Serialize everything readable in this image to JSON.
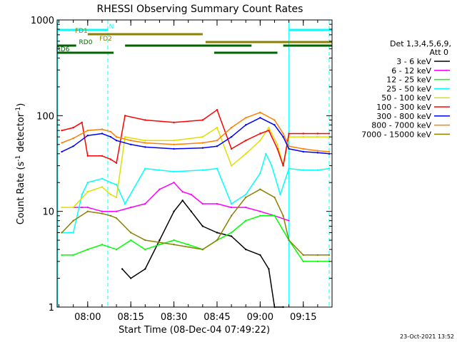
{
  "chart_data": {
    "type": "line",
    "title": "RHESSI Observing Summary Count Rates",
    "xlabel": "Start Time (08-Dec-04 07:49:22)",
    "ylabel": "Count Rate (s⁻¹ detector⁻¹)",
    "ylabel_base": "Count Rate (s",
    "ylabel_mid": " detector",
    "ylabel_end": ")",
    "ylabel_exp": "-1",
    "yscale": "log",
    "ylim": [
      1,
      1000
    ],
    "xlim": [
      "07:49:22",
      "09:25:00"
    ],
    "x_ticks": [
      "08:00",
      "08:15",
      "08:30",
      "08:45",
      "09:00",
      "09:15"
    ],
    "y_ticks": [
      "1",
      "10",
      "100",
      "1000"
    ],
    "legend_header": [
      "Det 1,3,4,5,6,9,",
      "Att 0"
    ],
    "legend_position": "right",
    "timestamp": "23-Oct-2021 13:52",
    "flags": [
      {
        "label": "N",
        "color": "#00ffff",
        "segments": [
          [
            "07:49",
            "08:07"
          ],
          [
            "09:10",
            "09:25"
          ]
        ]
      },
      {
        "label": "FD1",
        "color": "#8b8000",
        "segments": [
          [
            "08:00",
            "08:40"
          ]
        ]
      },
      {
        "label": "FD2",
        "color": "#8b8000",
        "segments": [
          [
            "08:41",
            "09:25"
          ]
        ]
      },
      {
        "label": "RD0",
        "color": "#006400",
        "segments": [
          [
            "07:49",
            "07:56"
          ],
          [
            "08:13",
            "08:57"
          ],
          [
            "09:08",
            "09:25"
          ]
        ]
      },
      {
        "label": "RD6",
        "color": "#006400",
        "segments": [
          [
            "07:49",
            "08:09"
          ],
          [
            "08:44",
            "09:06"
          ]
        ]
      }
    ],
    "night_intervals": [
      [
        "07:49",
        "08:07"
      ],
      [
        "09:10",
        "09:24"
      ]
    ],
    "series": [
      {
        "name": "3 - 6 keV",
        "color": "#000000",
        "x": [
          "08:12",
          "08:15",
          "08:20",
          "08:25",
          "08:30",
          "08:33",
          "08:36",
          "08:40",
          "08:45",
          "08:50",
          "08:55",
          "09:00",
          "09:03",
          "09:05",
          "09:08"
        ],
        "values": [
          2.5,
          2.0,
          2.5,
          5,
          10,
          13,
          10,
          7,
          6,
          5.5,
          4,
          3.5,
          2.5,
          1.0,
          1.0
        ]
      },
      {
        "name": "6 - 12 keV",
        "color": "#ff00ff",
        "x": [
          "07:55",
          "07:58",
          "08:00",
          "08:05",
          "08:10",
          "08:15",
          "08:20",
          "08:25",
          "08:30",
          "08:33",
          "08:36",
          "08:40",
          "08:45",
          "08:50",
          "08:55",
          "09:00",
          "09:05",
          "09:10"
        ],
        "values": [
          11,
          11,
          11,
          10,
          10,
          11,
          12,
          17,
          20,
          16,
          15,
          12,
          12,
          11,
          11,
          10,
          9,
          8
        ]
      },
      {
        "name": "12 - 25 keV",
        "color": "#00ff00",
        "x": [
          "07:51",
          "07:55",
          "08:00",
          "08:05",
          "08:10",
          "08:15",
          "08:20",
          "08:25",
          "08:30",
          "08:35",
          "08:40",
          "08:45",
          "08:50",
          "08:55",
          "09:00",
          "09:05",
          "09:10",
          "09:15",
          "09:20",
          "09:24"
        ],
        "values": [
          3.5,
          3.5,
          4,
          4.5,
          4,
          5,
          4,
          4.5,
          5,
          4.5,
          4,
          5,
          6,
          8,
          9,
          9,
          5,
          3,
          3,
          3
        ]
      },
      {
        "name": "25 - 50 keV",
        "color": "#00ffff",
        "x": [
          "07:51",
          "07:55",
          "07:58",
          "08:00",
          "08:05",
          "08:08",
          "08:10",
          "08:13",
          "08:20",
          "08:30",
          "08:40",
          "08:45",
          "08:50",
          "08:55",
          "09:00",
          "09:02",
          "09:04",
          "09:07",
          "09:10",
          "09:15",
          "09:20",
          "09:24"
        ],
        "values": [
          6,
          6,
          15,
          20,
          22,
          20,
          19,
          12,
          28,
          26,
          27,
          28,
          12,
          15,
          25,
          40,
          30,
          15,
          28,
          27,
          27,
          28
        ]
      },
      {
        "name": "50 - 100 keV",
        "color": "#e0e000",
        "x": [
          "07:51",
          "07:55",
          "08:00",
          "08:05",
          "08:08",
          "08:10",
          "08:13",
          "08:20",
          "08:30",
          "08:40",
          "08:45",
          "08:50",
          "08:55",
          "09:00",
          "09:03",
          "09:06",
          "09:08",
          "09:10",
          "09:15",
          "09:20",
          "09:24"
        ],
        "values": [
          11,
          11,
          16,
          18,
          15,
          14,
          60,
          55,
          55,
          60,
          75,
          30,
          40,
          55,
          75,
          50,
          30,
          60,
          60,
          60,
          60
        ]
      },
      {
        "name": "100 - 300 keV",
        "color": "#ff0000",
        "x": [
          "07:51",
          "07:55",
          "07:58",
          "08:00",
          "08:05",
          "08:08",
          "08:10",
          "08:13",
          "08:20",
          "08:30",
          "08:40",
          "08:45",
          "08:50",
          "08:55",
          "09:00",
          "09:03",
          "09:06",
          "09:08",
          "09:10",
          "09:15",
          "09:20",
          "09:24"
        ],
        "values": [
          70,
          75,
          85,
          38,
          38,
          35,
          32,
          100,
          90,
          85,
          90,
          115,
          45,
          55,
          65,
          70,
          45,
          30,
          65,
          65,
          65,
          65
        ]
      },
      {
        "name": "300 - 800 keV",
        "color": "#0000ff",
        "x": [
          "07:51",
          "07:55",
          "08:00",
          "08:05",
          "08:08",
          "08:10",
          "08:15",
          "08:20",
          "08:30",
          "08:40",
          "08:45",
          "08:50",
          "08:55",
          "09:00",
          "09:05",
          "09:08",
          "09:10",
          "09:15",
          "09:20",
          "09:24"
        ],
        "values": [
          42,
          48,
          62,
          65,
          60,
          55,
          50,
          47,
          45,
          46,
          48,
          60,
          80,
          95,
          80,
          60,
          45,
          42,
          41,
          40
        ]
      },
      {
        "name": "800 - 7000 keV",
        "color": "#ff8000",
        "x": [
          "07:51",
          "07:55",
          "08:00",
          "08:05",
          "08:08",
          "08:10",
          "08:15",
          "08:20",
          "08:30",
          "08:40",
          "08:45",
          "08:50",
          "08:55",
          "09:00",
          "09:05",
          "09:08",
          "09:10",
          "09:15",
          "09:20",
          "09:24"
        ],
        "values": [
          52,
          58,
          70,
          72,
          68,
          60,
          55,
          52,
          50,
          52,
          55,
          75,
          95,
          108,
          90,
          65,
          48,
          45,
          43,
          42
        ]
      },
      {
        "name": "7000 - 15000 keV",
        "color": "#8b8000",
        "x": [
          "07:51",
          "07:55",
          "08:00",
          "08:05",
          "08:08",
          "08:10",
          "08:15",
          "08:20",
          "08:30",
          "08:40",
          "08:45",
          "08:50",
          "08:55",
          "09:00",
          "09:05",
          "09:08",
          "09:10",
          "09:15",
          "09:20",
          "09:24"
        ],
        "values": [
          6,
          8,
          10,
          9.5,
          9,
          8.5,
          6,
          5,
          4.5,
          4,
          5,
          9,
          14,
          17,
          14,
          9,
          5,
          3.5,
          3.5,
          3.5
        ]
      }
    ]
  }
}
